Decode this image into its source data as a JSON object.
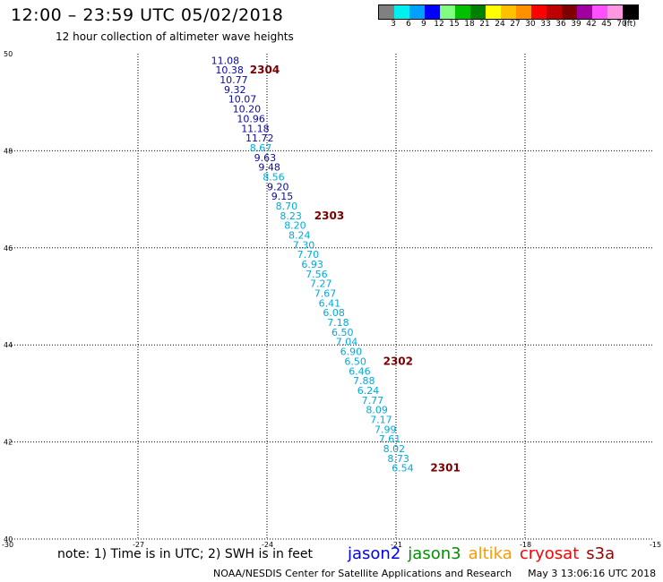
{
  "header": {
    "title": "12:00 – 23:59 UTC 05/02/2018",
    "subtitle": "12 hour collection of altimeter wave heights"
  },
  "color_scale": {
    "labels": [
      "3",
      "6",
      "9",
      "12",
      "15",
      "18",
      "21",
      "24",
      "27",
      "30",
      "33",
      "36",
      "39",
      "42",
      "45",
      "70",
      "(ft)"
    ],
    "colors": [
      "#808080",
      "#00f0f0",
      "#00a0ff",
      "#0000ff",
      "#80ff80",
      "#00c000",
      "#008000",
      "#ffff00",
      "#ffc000",
      "#ff9000",
      "#ff0000",
      "#c00000",
      "#800000",
      "#a000a0",
      "#ff50ff",
      "#ff96e0",
      "#000000"
    ]
  },
  "map": {
    "lon_ticks": [
      "-30",
      "-27",
      "-24",
      "-21",
      "-18",
      "-15"
    ],
    "lat_ticks": [
      "50",
      "48",
      "46",
      "44",
      "42",
      "40"
    ],
    "lon_range": [
      -30,
      -15
    ],
    "lat_range": [
      40,
      50
    ]
  },
  "track_colors": {
    "dark": "#0a0aa0",
    "light": "#00aadd",
    "time": "#7a0000"
  },
  "observations": [
    {
      "lon": -25.3,
      "lat": 49.79,
      "swh": "11.08",
      "c": "dark"
    },
    {
      "lon": -25.2,
      "lat": 49.59,
      "swh": "10.38",
      "c": "dark"
    },
    {
      "lon": -25.1,
      "lat": 49.39,
      "swh": "10.77",
      "c": "dark"
    },
    {
      "lon": -25.0,
      "lat": 49.19,
      "swh": "9.32",
      "c": "dark"
    },
    {
      "lon": -24.9,
      "lat": 48.99,
      "swh": "10.07",
      "c": "dark"
    },
    {
      "lon": -24.8,
      "lat": 48.79,
      "swh": "10.20",
      "c": "dark"
    },
    {
      "lon": -24.7,
      "lat": 48.59,
      "swh": "10.96",
      "c": "dark"
    },
    {
      "lon": -24.6,
      "lat": 48.39,
      "swh": "11.18",
      "c": "dark"
    },
    {
      "lon": -24.5,
      "lat": 48.19,
      "swh": "11.72",
      "c": "dark"
    },
    {
      "lon": -24.4,
      "lat": 47.99,
      "swh": "8.67",
      "c": "light"
    },
    {
      "lon": -24.3,
      "lat": 47.79,
      "swh": "9.63",
      "c": "dark"
    },
    {
      "lon": -24.2,
      "lat": 47.59,
      "swh": "9.48",
      "c": "dark"
    },
    {
      "lon": -24.1,
      "lat": 47.39,
      "swh": "8.56",
      "c": "light"
    },
    {
      "lon": -24.0,
      "lat": 47.19,
      "swh": "9.20",
      "c": "dark"
    },
    {
      "lon": -23.9,
      "lat": 46.99,
      "swh": "9.15",
      "c": "dark"
    },
    {
      "lon": -23.8,
      "lat": 46.79,
      "swh": "8.70",
      "c": "light"
    },
    {
      "lon": -23.7,
      "lat": 46.59,
      "swh": "8.23",
      "c": "light"
    },
    {
      "lon": -23.6,
      "lat": 46.39,
      "swh": "8.20",
      "c": "light"
    },
    {
      "lon": -23.5,
      "lat": 46.19,
      "swh": "8.24",
      "c": "light"
    },
    {
      "lon": -23.4,
      "lat": 45.99,
      "swh": "7.30",
      "c": "light"
    },
    {
      "lon": -23.3,
      "lat": 45.79,
      "swh": "7.70",
      "c": "light"
    },
    {
      "lon": -23.2,
      "lat": 45.59,
      "swh": "6.93",
      "c": "light"
    },
    {
      "lon": -23.1,
      "lat": 45.39,
      "swh": "7.56",
      "c": "light"
    },
    {
      "lon": -23.0,
      "lat": 45.19,
      "swh": "7.27",
      "c": "light"
    },
    {
      "lon": -22.9,
      "lat": 44.99,
      "swh": "7.67",
      "c": "light"
    },
    {
      "lon": -22.8,
      "lat": 44.79,
      "swh": "6.41",
      "c": "light"
    },
    {
      "lon": -22.7,
      "lat": 44.59,
      "swh": "6.08",
      "c": "light"
    },
    {
      "lon": -22.6,
      "lat": 44.39,
      "swh": "7.18",
      "c": "light"
    },
    {
      "lon": -22.5,
      "lat": 44.19,
      "swh": "6.50",
      "c": "light"
    },
    {
      "lon": -22.4,
      "lat": 43.99,
      "swh": "7.04",
      "c": "light"
    },
    {
      "lon": -22.3,
      "lat": 43.79,
      "swh": "6.90",
      "c": "light"
    },
    {
      "lon": -22.2,
      "lat": 43.59,
      "swh": "6.50",
      "c": "light"
    },
    {
      "lon": -22.1,
      "lat": 43.39,
      "swh": "6.46",
      "c": "light"
    },
    {
      "lon": -22.0,
      "lat": 43.19,
      "swh": "7.88",
      "c": "light"
    },
    {
      "lon": -21.9,
      "lat": 42.99,
      "swh": "6.24",
      "c": "light"
    },
    {
      "lon": -21.8,
      "lat": 42.79,
      "swh": "7.77",
      "c": "light"
    },
    {
      "lon": -21.7,
      "lat": 42.59,
      "swh": "8.09",
      "c": "light"
    },
    {
      "lon": -21.6,
      "lat": 42.39,
      "swh": "7.17",
      "c": "light"
    },
    {
      "lon": -21.5,
      "lat": 42.19,
      "swh": "7.99",
      "c": "light"
    },
    {
      "lon": -21.4,
      "lat": 41.99,
      "swh": "7.61",
      "c": "light"
    },
    {
      "lon": -21.3,
      "lat": 41.79,
      "swh": "8.02",
      "c": "light"
    },
    {
      "lon": -21.2,
      "lat": 41.59,
      "swh": "8.73",
      "c": "light"
    },
    {
      "lon": -21.1,
      "lat": 41.39,
      "swh": "6.54",
      "c": "light"
    }
  ],
  "time_labels": [
    {
      "lon": -24.4,
      "lat": 49.59,
      "text": "2304"
    },
    {
      "lon": -22.9,
      "lat": 46.59,
      "text": "2303"
    },
    {
      "lon": -21.3,
      "lat": 43.59,
      "text": "2302"
    },
    {
      "lon": -20.2,
      "lat": 41.39,
      "text": "2301"
    }
  ],
  "footer": {
    "note": "note: 1) Time is in UTC; 2) SWH is in feet",
    "satellites": [
      {
        "name": "jason2",
        "color": "#0000ff"
      },
      {
        "name": "jason3",
        "color": "#009000"
      },
      {
        "name": "altika",
        "color": "#ff9900"
      },
      {
        "name": "cryosat",
        "color": "#ff0000"
      },
      {
        "name": "s3a",
        "color": "#990000"
      }
    ],
    "credit": "NOAA/NESDIS Center for Satellite Applications and Research",
    "timestamp": "May  3 13:06:16 UTC 2018"
  }
}
